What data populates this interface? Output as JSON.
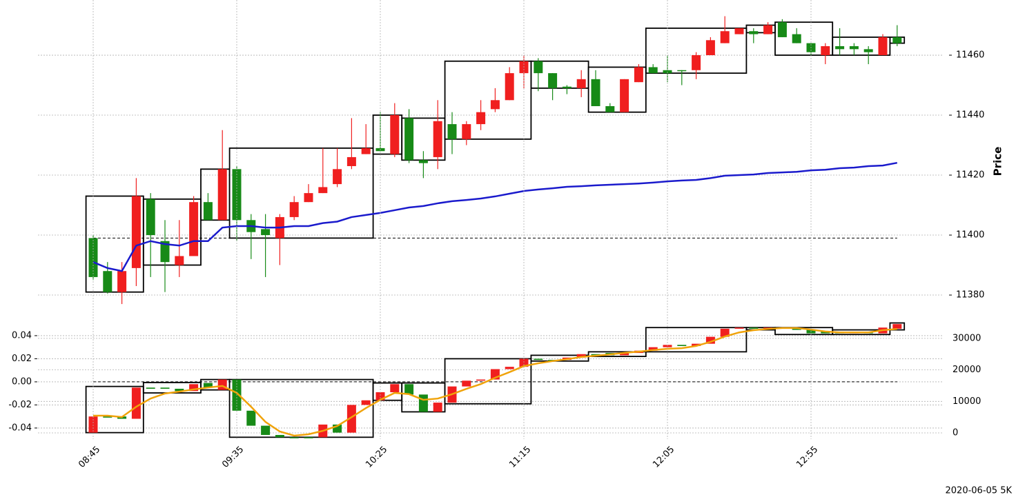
{
  "chart_data": [
    {
      "type": "candlestick",
      "ylabel": "Price",
      "up_color": "#f01f1f",
      "down_color": "#178a17",
      "grid": true,
      "ylim": [
        11373.8,
        11478.4
      ],
      "yticks": [
        11380,
        11400,
        11420,
        11440,
        11460
      ],
      "open": [
        11399,
        11388,
        11381,
        11389,
        11412,
        11398,
        11390,
        11393,
        11411,
        11405,
        11422,
        11405,
        11402,
        11399,
        11406,
        11411,
        11414,
        11417,
        11423,
        11427,
        11429,
        11427,
        11439,
        11425,
        11426,
        11437,
        11432,
        11437,
        11442,
        11445,
        11454,
        11458,
        11454,
        11449.5,
        11449,
        11452,
        11443,
        11441,
        11451,
        11456,
        11455,
        11455,
        11455,
        11460,
        11464,
        11467,
        11468,
        11467,
        11471,
        11467,
        11464,
        11460,
        11463,
        11463,
        11462,
        11460,
        11466
      ],
      "high": [
        11400,
        11391,
        11391,
        11419,
        11414,
        11405,
        11405,
        11413,
        11414,
        11435,
        11423,
        11407,
        11407,
        11407,
        11413,
        11417,
        11429,
        11429,
        11439,
        11437,
        11441,
        11444,
        11442,
        11428,
        11445,
        11441,
        11438,
        11445,
        11449,
        11456,
        11460,
        11459,
        11454,
        11450,
        11455,
        11455,
        11444,
        11452,
        11457,
        11457,
        11460,
        11455,
        11461,
        11466,
        11473,
        11469,
        11469,
        11471,
        11472,
        11469,
        11464,
        11464,
        11469,
        11464,
        11463,
        11467,
        11470
      ],
      "low": [
        11385,
        11380.5,
        11377,
        11383,
        11386,
        11381,
        11386,
        11393,
        11405,
        11405,
        11398,
        11392,
        11386,
        11390,
        11405,
        11411,
        11414,
        11416,
        11422,
        11427,
        11428,
        11426,
        11424,
        11419,
        11422,
        11427,
        11430,
        11435,
        11441,
        11445,
        11449,
        11448,
        11445,
        11447,
        11446,
        11443,
        11441,
        11441,
        11451,
        11454,
        11451,
        11450,
        11452,
        11460,
        11464,
        11467,
        11464,
        11467,
        11466,
        11464,
        11460,
        11457,
        11460,
        11460,
        11457,
        11460,
        11463
      ],
      "close": [
        11386,
        11381,
        11388,
        11413,
        11400,
        11391,
        11393,
        11411,
        11405,
        11422,
        11405,
        11401,
        11400,
        11406,
        11411,
        11414,
        11416,
        11422,
        11426,
        11429,
        11428,
        11440,
        11425,
        11424,
        11438,
        11432,
        11437,
        11441,
        11445,
        11454,
        11458,
        11454,
        11449,
        11449,
        11452,
        11443,
        11441,
        11452,
        11456,
        11454,
        11454,
        11454.8,
        11460,
        11465,
        11468,
        11469,
        11467,
        11470,
        11466,
        11464,
        11461,
        11463,
        11462,
        11462,
        11461,
        11466,
        11464
      ],
      "line": {
        "color": "#1a1acc",
        "values": [
          11391,
          11389,
          11388,
          11396.5,
          11398,
          11397,
          11396.5,
          11398,
          11398,
          11402.5,
          11403,
          11403,
          11402.5,
          11402.5,
          11403,
          11403,
          11404,
          11404.5,
          11406,
          11406.7,
          11407.4,
          11408.3,
          11409.2,
          11409.7,
          11410.6,
          11411.3,
          11411.7,
          11412.2,
          11412.9,
          11413.8,
          11414.7,
          11415.2,
          11415.6,
          11416.1,
          11416.3,
          11416.6,
          11416.8,
          11417,
          11417.2,
          11417.5,
          11417.9,
          11418.2,
          11418.4,
          11419,
          11419.8,
          11420,
          11420.2,
          11420.7,
          11420.9,
          11421.1,
          11421.6,
          11421.8,
          11422.3,
          11422.5,
          11423,
          11423.2,
          11424.1
        ]
      },
      "hline": 11399,
      "boxes": [
        {
          "x": [
            0,
            3
          ],
          "y": [
            11381,
            11413
          ]
        },
        {
          "x": [
            4,
            7
          ],
          "y": [
            11390,
            11412
          ]
        },
        {
          "x": [
            8,
            9
          ],
          "y": [
            11405,
            11422
          ]
        },
        {
          "x": [
            10,
            19
          ],
          "y": [
            11399,
            11429
          ]
        },
        {
          "x": [
            20,
            21
          ],
          "y": [
            11427,
            11440
          ]
        },
        {
          "x": [
            22,
            24
          ],
          "y": [
            11425,
            11439
          ]
        },
        {
          "x": [
            25,
            30
          ],
          "y": [
            11432,
            11458
          ]
        },
        {
          "x": [
            31,
            34
          ],
          "y": [
            11449,
            11458
          ]
        },
        {
          "x": [
            35,
            38
          ],
          "y": [
            11441,
            11456
          ]
        },
        {
          "x": [
            39,
            45
          ],
          "y": [
            11454,
            11469
          ]
        },
        {
          "x": [
            46,
            47
          ],
          "y": [
            11467.5,
            11470
          ]
        },
        {
          "x": [
            48,
            51
          ],
          "y": [
            11460,
            11471
          ]
        },
        {
          "x": [
            52,
            55
          ],
          "y": [
            11460,
            11466
          ]
        },
        {
          "x": [
            56,
            56
          ],
          "y": [
            11464,
            11466
          ]
        }
      ]
    },
    {
      "type": "candlestick",
      "up_color": "#f01f1f",
      "down_color": "#178a17",
      "grid": true,
      "categories": [
        "08:45",
        null,
        null,
        null,
        null,
        null,
        null,
        null,
        null,
        null,
        "09:35",
        null,
        null,
        null,
        null,
        null,
        null,
        null,
        null,
        null,
        "10:25",
        null,
        null,
        null,
        null,
        null,
        null,
        null,
        null,
        null,
        "11:15",
        null,
        null,
        null,
        null,
        null,
        null,
        null,
        null,
        null,
        "12:05",
        null,
        null,
        null,
        null,
        null,
        null,
        null,
        null,
        null,
        "12:55",
        null,
        null,
        null,
        null,
        null,
        null
      ],
      "ylim": [
        -0.0496,
        0.0519
      ],
      "yticks": [
        -0.04,
        -0.02,
        {
          "value": 0,
          "label": "0.00"
        },
        0.02,
        0.04
      ],
      "y2lim": [
        -1970,
        35230
      ],
      "y2ticks": [
        0,
        10000,
        20000,
        30000
      ],
      "open": [
        -0.044,
        -0.03,
        -0.03,
        -0.032,
        -0.005,
        -0.005,
        -0.006,
        -0.008,
        -0.001,
        -0.007,
        0.002,
        -0.025,
        -0.038,
        -0.046,
        -0.048,
        -0.048,
        -0.048,
        -0.037,
        -0.044,
        -0.02,
        -0.016,
        -0.009,
        -0.002,
        -0.011,
        -0.026,
        -0.018,
        -0.004,
        0.001,
        0.002,
        0.011,
        0.013,
        0.02,
        0.019,
        0.019,
        0.021,
        0.024,
        0.025,
        0.023,
        0.025,
        0.027,
        0.03,
        0.032,
        0.031,
        0.033,
        0.039,
        0.046,
        0.047,
        0.046,
        0.047,
        0.046,
        0.045,
        0.044,
        0.043,
        0.042,
        0.043,
        0.042,
        0.046
      ],
      "close": [
        -0.03,
        -0.031,
        -0.032,
        -0.005,
        -0.006,
        -0.006,
        -0.008,
        -0.002,
        -0.005,
        0.002,
        -0.025,
        -0.038,
        -0.046,
        -0.048,
        -0.048,
        -0.048,
        -0.037,
        -0.044,
        -0.02,
        -0.016,
        -0.009,
        -0.002,
        -0.011,
        -0.026,
        -0.018,
        -0.004,
        0.001,
        0.002,
        0.011,
        0.013,
        0.02,
        0.019,
        0.019,
        0.021,
        0.024,
        0.023,
        0.023,
        0.025,
        0.027,
        0.03,
        0.032,
        0.031,
        0.033,
        0.039,
        0.046,
        0.047,
        0.046,
        0.047,
        0.046,
        0.045,
        0.042,
        0.042,
        0.042,
        0.043,
        0.042,
        0.047,
        0.05
      ],
      "line": {
        "color": "#f0a30a",
        "axis": "y2",
        "values": [
          5470,
          5470,
          5030,
          8300,
          10900,
          12500,
          13100,
          13800,
          14400,
          14900,
          12700,
          8300,
          3500,
          440,
          -870,
          -440,
          650,
          2200,
          5000,
          7900,
          10500,
          12700,
          12300,
          10500,
          10900,
          12300,
          14000,
          15500,
          17500,
          19300,
          21200,
          22100,
          22800,
          23400,
          24100,
          24500,
          24900,
          25400,
          25800,
          26300,
          26700,
          26900,
          27600,
          28900,
          30600,
          31900,
          32600,
          33000,
          33300,
          33300,
          32800,
          32200,
          31900,
          31900,
          31900,
          32600,
          33000
        ]
      },
      "hline": 0,
      "boxes": [
        {
          "x": [
            0,
            3
          ],
          "y": [
            -0.044,
            -0.004
          ]
        },
        {
          "x": [
            4,
            7
          ],
          "y": [
            -0.0096,
            -0.0006
          ]
        },
        {
          "x": [
            8,
            9
          ],
          "y": [
            -0.007,
            0.002
          ]
        },
        {
          "x": [
            10,
            19
          ],
          "y": [
            -0.048,
            0.002
          ]
        },
        {
          "x": [
            20,
            21
          ],
          "y": [
            -0.016,
            -0.001
          ]
        },
        {
          "x": [
            22,
            24
          ],
          "y": [
            -0.026,
            -0.001
          ]
        },
        {
          "x": [
            25,
            30
          ],
          "y": [
            -0.019,
            0.02
          ]
        },
        {
          "x": [
            31,
            34
          ],
          "y": [
            0.018,
            0.023
          ]
        },
        {
          "x": [
            35,
            38
          ],
          "y": [
            0.022,
            0.026
          ]
        },
        {
          "x": [
            39,
            45
          ],
          "y": [
            0.026,
            0.047
          ]
        },
        {
          "x": [
            46,
            47
          ],
          "y": [
            0.045,
            0.047
          ]
        },
        {
          "x": [
            48,
            51
          ],
          "y": [
            0.041,
            0.047
          ]
        },
        {
          "x": [
            52,
            55
          ],
          "y": [
            0.041,
            0.045
          ]
        },
        {
          "x": [
            56,
            56
          ],
          "y": [
            0.045,
            0.051
          ]
        }
      ]
    }
  ],
  "footer": "2020-06-05 5K"
}
